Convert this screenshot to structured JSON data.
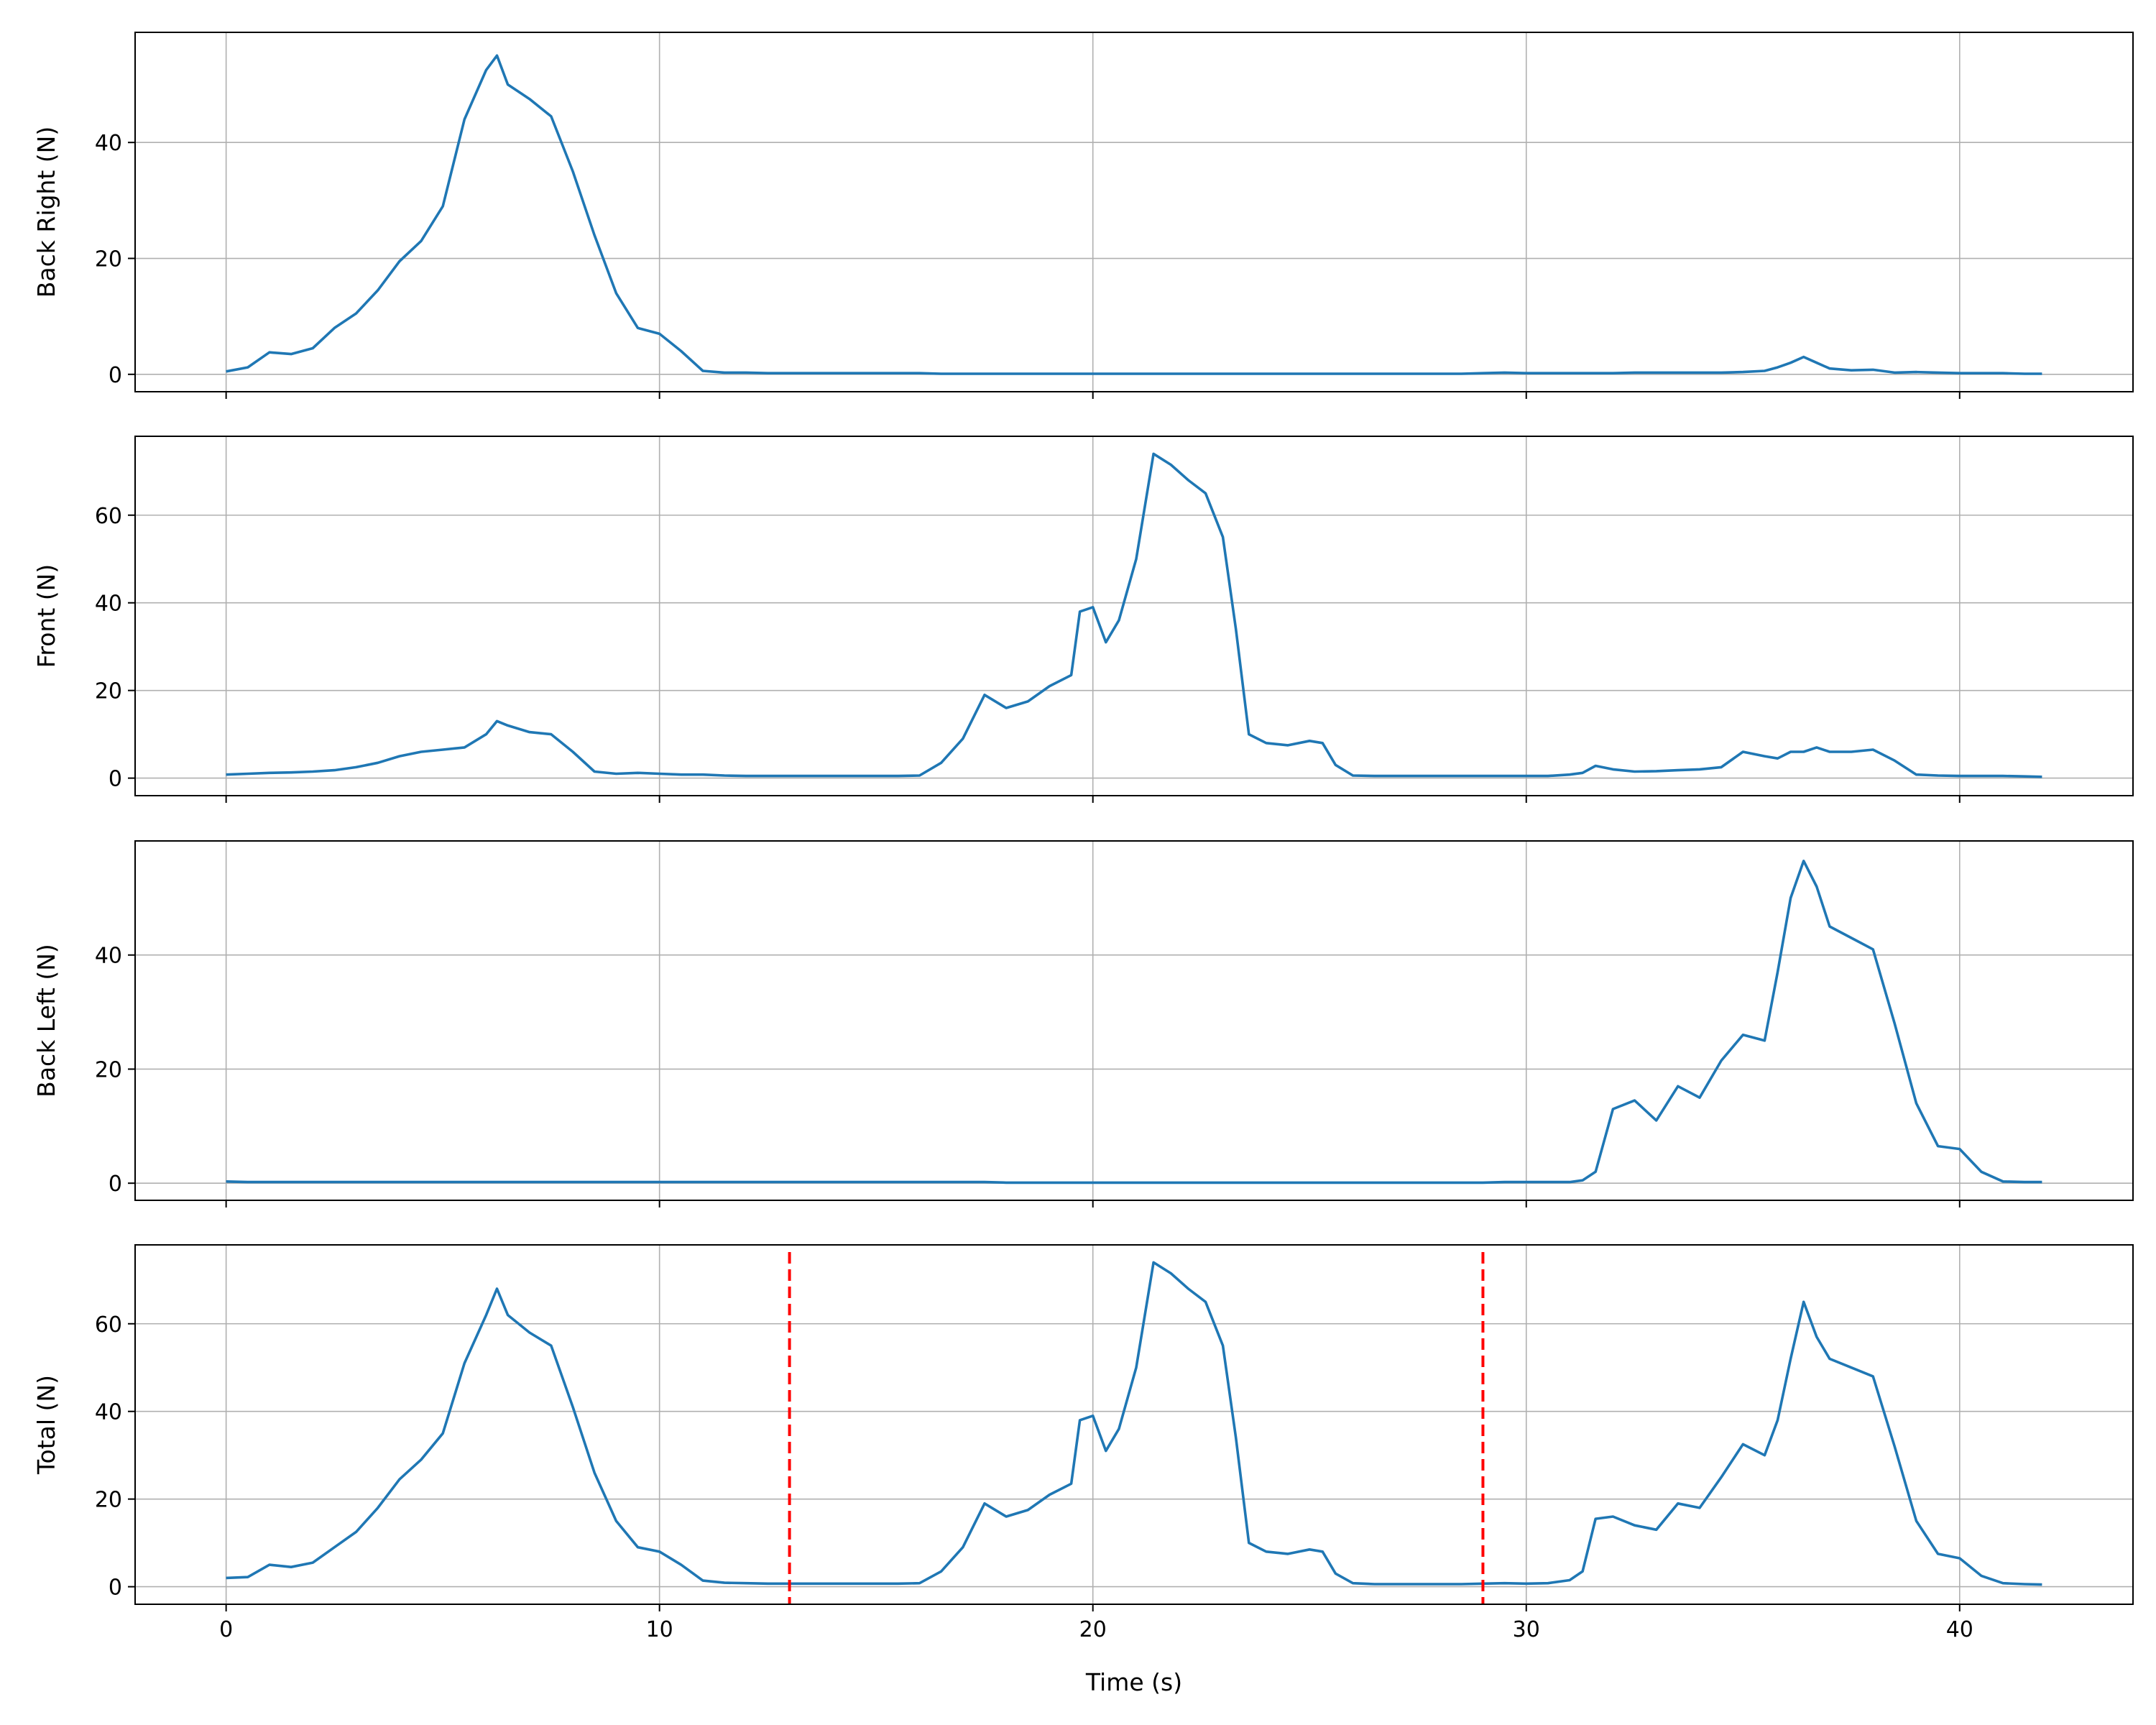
{
  "chart_data": {
    "type": "line",
    "xlabel": "Time (s)",
    "xlim": [
      -2.1,
      44.0
    ],
    "xticks": [
      0,
      10,
      20,
      30,
      40
    ],
    "grid": true,
    "line_color": "#1f77b4",
    "marker_color": "#ff0000",
    "x": [
      0,
      0.5,
      1.0,
      1.5,
      2.0,
      2.5,
      3.0,
      3.5,
      4.0,
      4.5,
      5.0,
      5.5,
      6.0,
      6.25,
      6.5,
      7.0,
      7.5,
      8.0,
      8.5,
      9.0,
      9.5,
      10.0,
      10.5,
      11.0,
      11.5,
      12.0,
      12.5,
      13.0,
      13.5,
      14.0,
      14.5,
      15.0,
      15.5,
      16.0,
      16.5,
      17.0,
      17.5,
      18.0,
      18.5,
      19.0,
      19.5,
      19.7,
      20.0,
      20.3,
      20.6,
      21.0,
      21.4,
      21.8,
      22.2,
      22.6,
      23.0,
      23.3,
      23.6,
      24.0,
      24.5,
      25.0,
      25.3,
      25.6,
      26.0,
      26.5,
      27.0,
      27.5,
      28.0,
      28.5,
      29.0,
      29.5,
      30.0,
      30.5,
      31.0,
      31.3,
      31.6,
      32.0,
      32.5,
      33.0,
      33.5,
      34.0,
      34.5,
      35.0,
      35.5,
      35.8,
      36.1,
      36.4,
      36.7,
      37.0,
      37.5,
      38.0,
      38.5,
      39.0,
      39.5,
      40.0,
      40.5,
      41.0,
      41.5,
      41.9
    ],
    "subplots": [
      {
        "name": "Back Right (N)",
        "ylim": [
          -3,
          59
        ],
        "yticks": [
          0,
          20,
          40
        ],
        "values": [
          0.5,
          1.2,
          3.8,
          3.5,
          4.5,
          8.0,
          10.5,
          14.5,
          19.5,
          23.0,
          29.0,
          44.0,
          52.5,
          55.0,
          50.0,
          47.5,
          44.5,
          35.0,
          24.0,
          14.0,
          8.0,
          7.0,
          4.0,
          0.6,
          0.3,
          0.3,
          0.2,
          0.2,
          0.2,
          0.2,
          0.2,
          0.2,
          0.2,
          0.2,
          0.1,
          0.1,
          0.1,
          0.1,
          0.1,
          0.1,
          0.1,
          0.1,
          0.1,
          0.1,
          0.1,
          0.1,
          0.1,
          0.1,
          0.1,
          0.1,
          0.1,
          0.1,
          0.1,
          0.1,
          0.1,
          0.1,
          0.1,
          0.1,
          0.1,
          0.1,
          0.1,
          0.1,
          0.1,
          0.1,
          0.2,
          0.3,
          0.2,
          0.2,
          0.2,
          0.2,
          0.2,
          0.2,
          0.3,
          0.3,
          0.3,
          0.3,
          0.3,
          0.4,
          0.6,
          1.2,
          2.0,
          3.0,
          2.0,
          1.0,
          0.7,
          0.8,
          0.3,
          0.4,
          0.3,
          0.2,
          0.2,
          0.2,
          0.1,
          0.1
        ]
      },
      {
        "name": "Front (N)",
        "ylim": [
          -4,
          78
        ],
        "yticks": [
          0,
          20,
          40,
          60
        ],
        "values": [
          0.8,
          1.0,
          1.2,
          1.3,
          1.5,
          1.8,
          2.5,
          3.5,
          5.0,
          6.0,
          6.5,
          7.0,
          10.0,
          13.0,
          12.0,
          10.5,
          10.0,
          6.0,
          1.5,
          1.0,
          1.2,
          1.0,
          0.8,
          0.8,
          0.6,
          0.5,
          0.5,
          0.5,
          0.5,
          0.5,
          0.5,
          0.5,
          0.5,
          0.6,
          3.5,
          9.0,
          19.0,
          16.0,
          17.5,
          21.0,
          23.5,
          38.0,
          39.0,
          31.0,
          36.0,
          50.0,
          74.0,
          71.5,
          68.0,
          65.0,
          55.0,
          34.0,
          10.0,
          8.0,
          7.5,
          8.5,
          8.0,
          3.0,
          0.6,
          0.5,
          0.5,
          0.5,
          0.5,
          0.5,
          0.5,
          0.5,
          0.5,
          0.5,
          0.8,
          1.2,
          2.8,
          2.0,
          1.5,
          1.6,
          1.8,
          2.0,
          2.5,
          6.0,
          5.0,
          4.5,
          6.0,
          6.0,
          7.0,
          6.0,
          6.0,
          6.5,
          4.0,
          0.8,
          0.6,
          0.5,
          0.5,
          0.5,
          0.4,
          0.3
        ]
      },
      {
        "name": "Back Left (N)",
        "ylim": [
          -3,
          60
        ],
        "yticks": [
          0,
          20,
          40
        ],
        "values": [
          0.3,
          0.2,
          0.2,
          0.2,
          0.2,
          0.2,
          0.2,
          0.2,
          0.2,
          0.2,
          0.2,
          0.2,
          0.2,
          0.2,
          0.2,
          0.2,
          0.2,
          0.2,
          0.2,
          0.2,
          0.2,
          0.2,
          0.2,
          0.2,
          0.2,
          0.2,
          0.2,
          0.2,
          0.2,
          0.2,
          0.2,
          0.2,
          0.2,
          0.2,
          0.2,
          0.2,
          0.2,
          0.1,
          0.1,
          0.1,
          0.1,
          0.1,
          0.1,
          0.1,
          0.1,
          0.1,
          0.1,
          0.1,
          0.1,
          0.1,
          0.1,
          0.1,
          0.1,
          0.1,
          0.1,
          0.1,
          0.1,
          0.1,
          0.1,
          0.1,
          0.1,
          0.1,
          0.1,
          0.1,
          0.1,
          0.2,
          0.2,
          0.2,
          0.2,
          0.5,
          2.0,
          13.0,
          14.5,
          11.0,
          17.0,
          15.0,
          21.5,
          26.0,
          25.0,
          37.0,
          50.0,
          56.5,
          52.0,
          45.0,
          43.0,
          41.0,
          28.0,
          14.0,
          6.5,
          6.0,
          2.0,
          0.3,
          0.2,
          0.2
        ]
      },
      {
        "name": "Total (N)",
        "ylim": [
          -4,
          78
        ],
        "yticks": [
          0,
          20,
          40,
          60
        ],
        "values": [
          2.0,
          2.2,
          5.0,
          4.5,
          5.5,
          9.0,
          12.5,
          18.0,
          24.5,
          29.0,
          35.0,
          51.0,
          62.0,
          68.0,
          62.0,
          58.0,
          55.0,
          41.0,
          26.0,
          15.0,
          9.0,
          8.0,
          5.0,
          1.4,
          0.9,
          0.8,
          0.7,
          0.7,
          0.7,
          0.7,
          0.7,
          0.7,
          0.7,
          0.8,
          3.5,
          9.0,
          19.0,
          16.0,
          17.5,
          21.0,
          23.5,
          38.0,
          39.0,
          31.0,
          36.0,
          50.0,
          74.0,
          71.5,
          68.0,
          65.0,
          55.0,
          34.0,
          10.0,
          8.0,
          7.5,
          8.5,
          8.0,
          3.0,
          0.8,
          0.6,
          0.6,
          0.6,
          0.6,
          0.6,
          0.7,
          0.8,
          0.7,
          0.8,
          1.5,
          3.5,
          15.5,
          16.0,
          14.0,
          13.0,
          19.0,
          18.0,
          25.0,
          32.5,
          30.0,
          38.0,
          52.0,
          65.0,
          57.0,
          52.0,
          50.0,
          48.0,
          32.0,
          15.0,
          7.5,
          6.5,
          2.5,
          0.8,
          0.6,
          0.5
        ],
        "vlines": [
          13.0,
          29.0
        ]
      }
    ]
  }
}
